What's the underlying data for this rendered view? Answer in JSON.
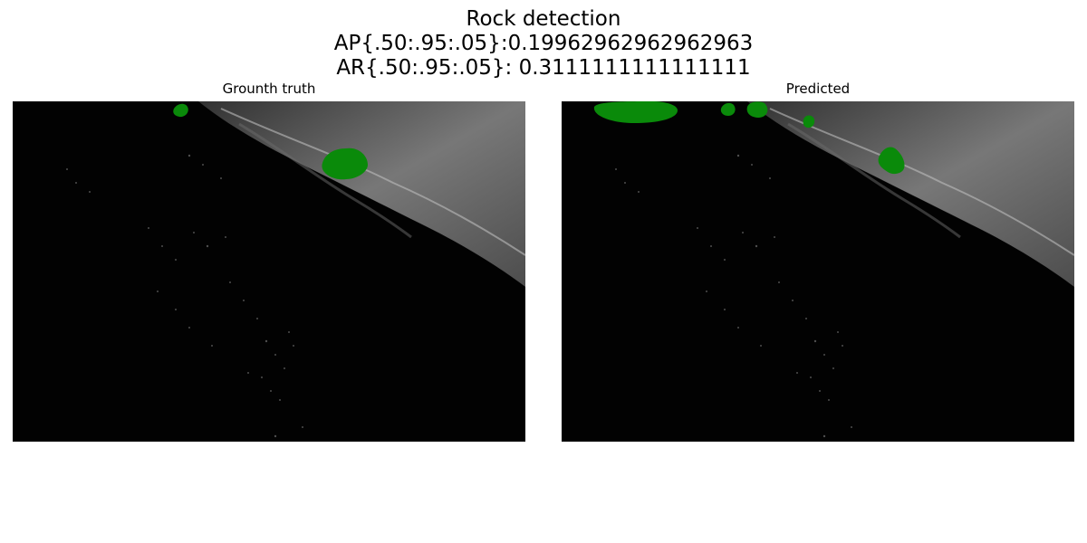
{
  "figure": {
    "title_lines": [
      "Rock detection",
      "AP{.50:.95:.05}:0.19962962962962963",
      "AR{.50:.95:.05}: 0.3111111111111111"
    ]
  },
  "panels": {
    "ground_truth": {
      "title": "Grounth truth"
    },
    "predicted": {
      "title": "Predicted"
    }
  },
  "colors": {
    "mask": "#0a8a0a",
    "background": "#020202",
    "terrain": "#8a8a8a"
  }
}
